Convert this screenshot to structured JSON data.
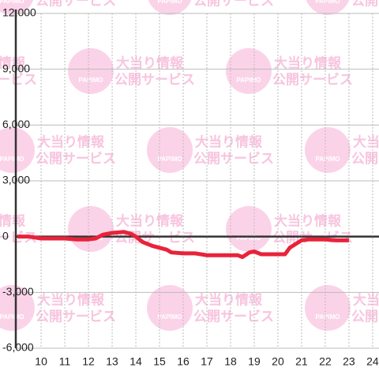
{
  "watermark": {
    "line1": "大当り情報",
    "line2": "公開サービス",
    "logo": "PAPIMO"
  },
  "chart_data": {
    "type": "line",
    "x": [
      9,
      9.5,
      10,
      11,
      11.5,
      12,
      12.3,
      12.6,
      13,
      13.5,
      13.8,
      14,
      14.3,
      14.7,
      15,
      15.3,
      15.5,
      16,
      16.5,
      17,
      17.5,
      18,
      18.3,
      18.5,
      18.8,
      19,
      19.3,
      20,
      20.3,
      20.5,
      21,
      21.3,
      22,
      22.5,
      23
    ],
    "series": [
      {
        "color": "#e8233a",
        "values": [
          0,
          0,
          -100,
          -100,
          -150,
          -150,
          -100,
          100,
          200,
          250,
          150,
          0,
          -300,
          -500,
          -600,
          -700,
          -850,
          -900,
          -900,
          -1000,
          -1000,
          -1000,
          -1000,
          -1100,
          -850,
          -800,
          -950,
          -950,
          -950,
          -600,
          -200,
          -150,
          -150,
          -200,
          -200
        ]
      }
    ],
    "xlim": [
      8.93,
      24.27
    ],
    "ylim": [
      -6000,
      12000
    ],
    "xticks": [
      10,
      11,
      12,
      13,
      14,
      15,
      16,
      17,
      18,
      19,
      20,
      21,
      22,
      23,
      24
    ],
    "yticks": [
      {
        "value": -6000,
        "label": "-6,000"
      },
      {
        "value": -3000,
        "label": "-3,000"
      },
      0,
      {
        "value": 3000,
        "label": "3,000"
      },
      {
        "value": 6000,
        "label": "6,000"
      },
      {
        "value": 9000,
        "label": "9,000"
      },
      {
        "value": 12000,
        "label": "12,000"
      }
    ],
    "grid": true
  }
}
